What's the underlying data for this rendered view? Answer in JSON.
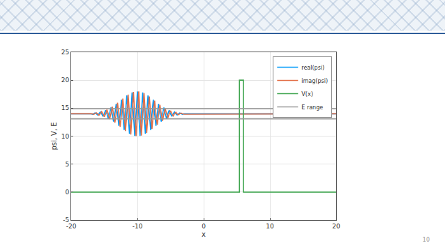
{
  "chart_data": {
    "type": "line",
    "x_label": "x",
    "y_label": "psi, V, E",
    "xlim": [
      -20,
      20
    ],
    "xticks": [
      -20,
      -10,
      0,
      10,
      20
    ],
    "ylim": [
      -5,
      25
    ],
    "yticks": [
      -5,
      0,
      5,
      10,
      15,
      20,
      25
    ],
    "grid": true,
    "legend": "top right",
    "series": [
      {
        "name": "real(psi)",
        "color": "#009AFA",
        "line_style": "solid",
        "x": [
          -20,
          -17.0,
          -16.8,
          -16.6,
          -16.4,
          -16.2,
          -16.0,
          -15.8,
          -15.6,
          -15.4,
          -15.2,
          -15.0,
          -14.8,
          -14.6,
          -14.4,
          -14.2,
          -14.0,
          -13.8,
          -13.6,
          -13.4,
          -13.2,
          -13.0,
          -12.8,
          -12.6,
          -12.4,
          -12.2,
          -12.0,
          -11.8,
          -11.6,
          -11.4,
          -11.2,
          -11.0,
          -10.8,
          -10.6,
          -10.4,
          -10.2,
          -10.0,
          -9.8,
          -9.6,
          -9.4,
          -9.2,
          -9.0,
          -8.8,
          -8.6,
          -8.4,
          -8.2,
          -8.0,
          -7.8,
          -7.6,
          -7.4,
          -7.2,
          -7.0,
          -6.8,
          -6.6,
          -6.4,
          -6.2,
          -6.0,
          -5.8,
          -5.6,
          -5.4,
          -5.2,
          -5.0,
          -4.8,
          -4.6,
          -4.4,
          -4.2,
          -4.0,
          -3.8,
          -3.6,
          -3.4,
          -3.2,
          -3.0,
          20
        ],
        "values": [
          14,
          14,
          13.9,
          14,
          14.15,
          14,
          13.78,
          14,
          14.33,
          14,
          13.54,
          14,
          14.63,
          14,
          13.15,
          14,
          15.11,
          14,
          12.59,
          14,
          15.76,
          14,
          11.86,
          14,
          16.52,
          14,
          11.1,
          14,
          17.27,
          14,
          10.43,
          14,
          17.8,
          14,
          10.05,
          14,
          18.0,
          14,
          10.05,
          14,
          17.8,
          14,
          10.43,
          14,
          17.27,
          14,
          11.1,
          14,
          16.52,
          14,
          11.86,
          14,
          15.76,
          14,
          12.59,
          14,
          15.11,
          14,
          13.15,
          14,
          14.63,
          14,
          13.54,
          14,
          14.33,
          14,
          13.78,
          14,
          14.15,
          14,
          13.9,
          14,
          14
        ]
      },
      {
        "name": "imag(psi)",
        "color": "#E36F47",
        "line_style": "solid",
        "x": [
          -20,
          -17.0,
          -16.8,
          -16.6,
          -16.4,
          -16.2,
          -16.0,
          -15.8,
          -15.6,
          -15.4,
          -15.2,
          -15.0,
          -14.8,
          -14.6,
          -14.4,
          -14.2,
          -14.0,
          -13.8,
          -13.6,
          -13.4,
          -13.2,
          -13.0,
          -12.8,
          -12.6,
          -12.4,
          -12.2,
          -12.0,
          -11.8,
          -11.6,
          -11.4,
          -11.2,
          -11.0,
          -10.8,
          -10.6,
          -10.4,
          -10.2,
          -10.0,
          -9.8,
          -9.6,
          -9.4,
          -9.2,
          -9.0,
          -8.8,
          -8.6,
          -8.4,
          -8.2,
          -8.0,
          -7.8,
          -7.6,
          -7.4,
          -7.2,
          -7.0,
          -6.8,
          -6.6,
          -6.4,
          -6.2,
          -6.0,
          -5.8,
          -5.6,
          -5.4,
          -5.2,
          -5.0,
          -4.8,
          -4.6,
          -4.4,
          -4.2,
          -4.0,
          -3.8,
          -3.6,
          -3.4,
          -3.2,
          -3.0,
          20
        ],
        "values": [
          14,
          14.08,
          14,
          13.88,
          14,
          14.18,
          14,
          13.73,
          14,
          14.39,
          14,
          13.46,
          14,
          14.74,
          14,
          13.03,
          14,
          15.26,
          14,
          12.42,
          14,
          15.95,
          14,
          11.67,
          14,
          16.71,
          14,
          10.9,
          14,
          17.44,
          14,
          10.3,
          14,
          17.89,
          14,
          10.01,
          14,
          17.99,
          14,
          10.11,
          14,
          17.7,
          14,
          10.56,
          14,
          17.1,
          14,
          11.29,
          14,
          16.33,
          14,
          12.05,
          14,
          15.58,
          14,
          12.74,
          14,
          14.97,
          14,
          13.26,
          14,
          14.54,
          14,
          13.61,
          14,
          14.27,
          14,
          13.82,
          14,
          14.12,
          14,
          13.92,
          14
        ]
      },
      {
        "name": "V(x)",
        "color": "#3EA44E",
        "line_style": "solid",
        "x": [
          -20,
          5.4,
          5.4,
          6.0,
          6.0,
          20
        ],
        "values": [
          0,
          0,
          20,
          20,
          0,
          0
        ]
      },
      {
        "name": "E range",
        "color": "#9a9a9a",
        "line_style": "solid",
        "x": [
          -20,
          20,
          null,
          -20,
          20
        ],
        "values": [
          13.1,
          13.1,
          null,
          14.9,
          14.9
        ]
      }
    ]
  },
  "slide": {
    "page_number": "10"
  }
}
